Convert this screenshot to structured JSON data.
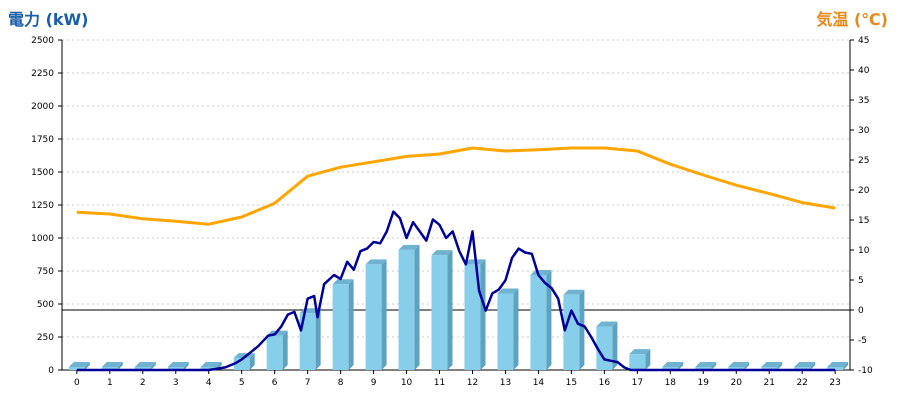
{
  "chart_data": {
    "type": "bar",
    "ylabel": "電力 (kW)",
    "y2label": "気温 (℃)",
    "categories": [
      "0",
      "1",
      "2",
      "3",
      "4",
      "5",
      "6",
      "7",
      "8",
      "9",
      "10",
      "11",
      "12",
      "13",
      "14",
      "15",
      "16",
      "17",
      "18",
      "19",
      "20",
      "21",
      "22",
      "23"
    ],
    "ylim": [
      0,
      2500
    ],
    "yticks": [
      0,
      250,
      500,
      750,
      1000,
      1250,
      1500,
      1750,
      2000,
      2250,
      2500
    ],
    "y2lim": [
      -10,
      45
    ],
    "y2ticks": [
      -10,
      -5,
      0,
      5,
      10,
      15,
      20,
      25,
      30,
      35,
      40,
      45
    ],
    "grid": true,
    "colors": {
      "bar": "#87CEEB",
      "power_line": "#000099",
      "temperature_line": "#FFA500",
      "left_title": "#1a5ea8",
      "right_title": "#e8891c"
    },
    "series": [
      {
        "kind": "bar",
        "axis": "left",
        "x": [
          0,
          1,
          2,
          3,
          4,
          5,
          6,
          7,
          8,
          9,
          10,
          11,
          12,
          13,
          14,
          15,
          16,
          17,
          18,
          19,
          20,
          21,
          22,
          23
        ],
        "values": [
          0,
          0,
          0,
          0,
          0,
          90,
          260,
          430,
          650,
          800,
          910,
          870,
          800,
          580,
          720,
          570,
          330,
          120,
          0,
          0,
          0,
          0,
          0,
          0
        ]
      },
      {
        "kind": "line",
        "axis": "left",
        "x": [
          0,
          1,
          2,
          3,
          4,
          4.5,
          4.8,
          5.0,
          5.2,
          5.5,
          5.8,
          6.0,
          6.2,
          6.4,
          6.6,
          6.8,
          7.0,
          7.2,
          7.3,
          7.5,
          7.8,
          8.0,
          8.2,
          8.4,
          8.6,
          8.8,
          9.0,
          9.2,
          9.4,
          9.6,
          9.8,
          10.0,
          10.2,
          10.4,
          10.6,
          10.8,
          11.0,
          11.2,
          11.4,
          11.6,
          11.8,
          12.0,
          12.2,
          12.4,
          12.6,
          12.8,
          13.0,
          13.2,
          13.4,
          13.6,
          13.8,
          14.0,
          14.2,
          14.4,
          14.6,
          14.8,
          15.0,
          15.2,
          15.4,
          15.6,
          15.8,
          16.0,
          16.2,
          16.4,
          16.6,
          16.8,
          17.0,
          17.2,
          17.4,
          17.6,
          17.8,
          18.0,
          19,
          20,
          21,
          22,
          23
        ],
        "values": [
          0,
          0,
          0,
          0,
          0,
          20,
          50,
          80,
          120,
          180,
          260,
          270,
          330,
          420,
          440,
          300,
          540,
          560,
          400,
          650,
          720,
          690,
          820,
          760,
          900,
          920,
          970,
          960,
          1050,
          1200,
          1150,
          1000,
          1120,
          1050,
          980,
          1140,
          1100,
          1000,
          1050,
          900,
          800,
          1050,
          600,
          450,
          580,
          610,
          680,
          850,
          920,
          890,
          880,
          720,
          660,
          620,
          540,
          300,
          450,
          350,
          330,
          250,
          160,
          80,
          70,
          60,
          20,
          0,
          0,
          0,
          0,
          0,
          0,
          0,
          0,
          0,
          0,
          0,
          0
        ],
        "y2_values_comment_free": true
      },
      {
        "kind": "line",
        "axis": "right",
        "x": [
          0,
          1,
          2,
          3,
          4,
          5,
          6,
          7,
          8,
          9,
          10,
          11,
          12,
          13,
          14,
          15,
          16,
          17,
          18,
          19,
          20,
          21,
          22,
          23
        ],
        "values": [
          16.3,
          16,
          15.2,
          14.8,
          14.3,
          15.5,
          17.8,
          22.3,
          23.8,
          24.7,
          25.6,
          26,
          27,
          26.5,
          26.7,
          27,
          27,
          26.5,
          24.3,
          22.5,
          20.8,
          19.4,
          17.9,
          17
        ]
      }
    ]
  }
}
